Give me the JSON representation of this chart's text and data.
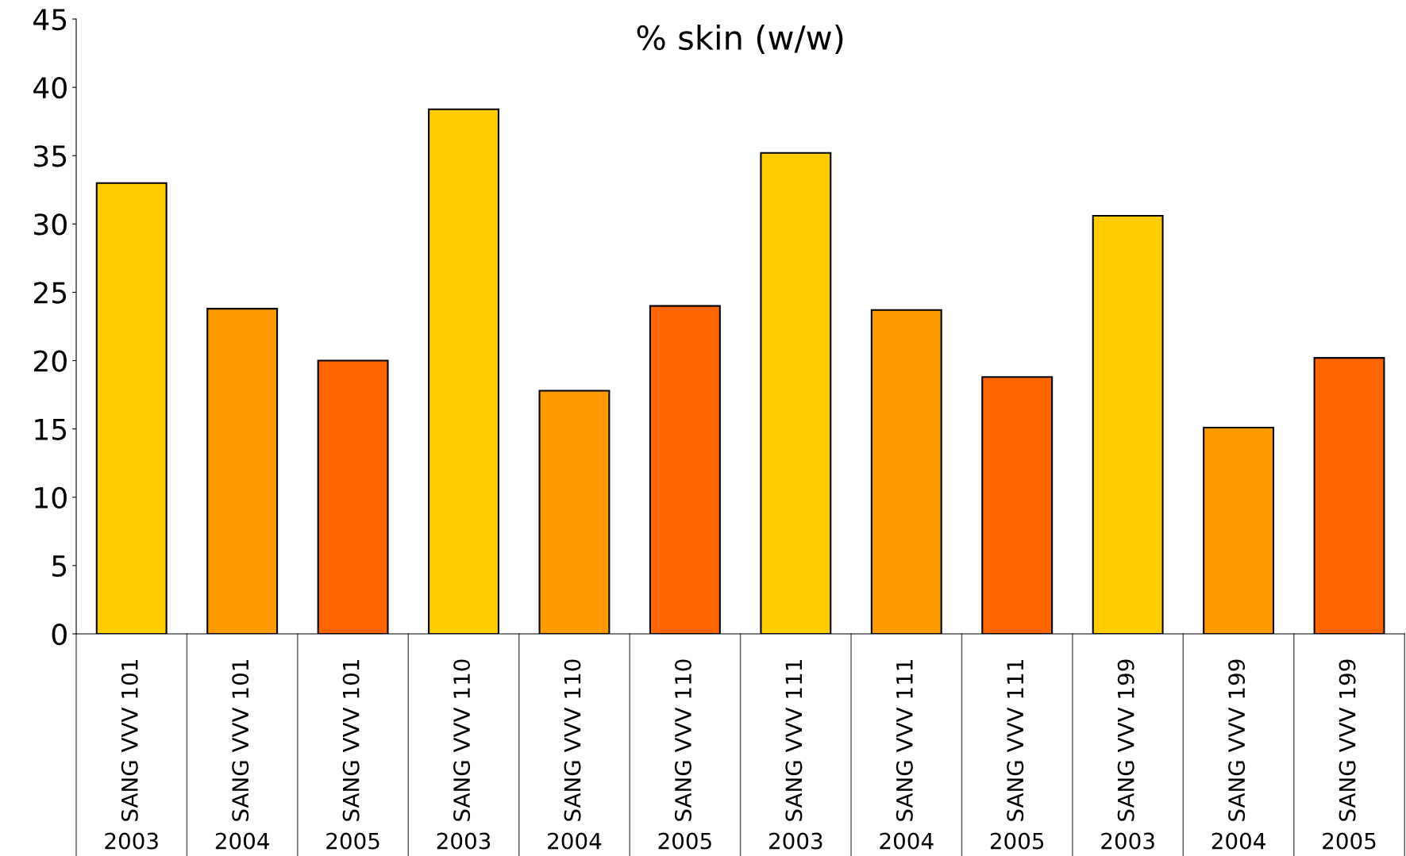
{
  "chart_data": {
    "type": "bar",
    "title": "% skin (w/w)",
    "categories": [
      "SANG VVV 101\n2003",
      "SANG VVV 101\n2004",
      "SANG VVV 101\n2005",
      "SANG VVV 110\n2003",
      "SANG VVV 110\n2004",
      "SANG VVV 110\n2005",
      "SANG VVV 111\n2003",
      "SANG VVV 111\n2004",
      "SANG VVV 111\n2005",
      "SANG VVV 199\n2003",
      "SANG VVV 199\n2004",
      "SANG VVV 199\n2005"
    ],
    "values": [
      33.0,
      23.8,
      20.0,
      38.4,
      17.8,
      24.0,
      35.2,
      23.7,
      18.8,
      30.6,
      15.1,
      20.2
    ],
    "colors": [
      "#ffcc00",
      "#ff9900",
      "#ff6600",
      "#ffcc00",
      "#ff9900",
      "#ff6600",
      "#ffcc00",
      "#ff9900",
      "#ff6600",
      "#ffcc00",
      "#ff9900",
      "#ff6600"
    ],
    "ylim": [
      0,
      45
    ],
    "yticks": [
      0,
      5,
      10,
      15,
      20,
      25,
      30,
      35,
      40,
      45
    ],
    "grid": false,
    "legend": false
  }
}
